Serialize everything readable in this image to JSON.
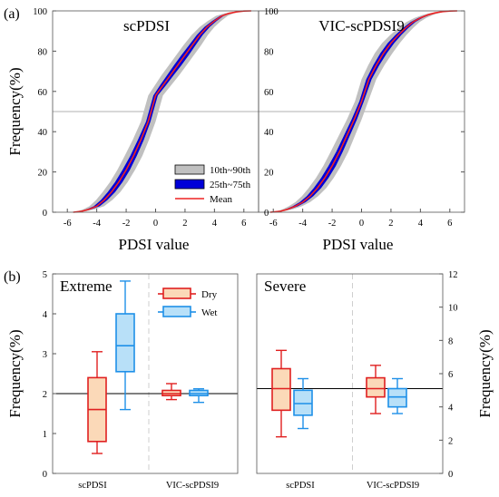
{
  "colors": {
    "band_outer": "#c0c0c0",
    "band_inner": "#0000d8",
    "mean_line": "#ee2222",
    "reference_line": "#b0b0b0",
    "dry_stroke": "#e02020",
    "dry_fill": "#fbd9b8",
    "wet_stroke": "#1e90e8",
    "wet_fill": "#b8e0f8",
    "hline": "#000000"
  },
  "chart_data": [
    {
      "panel": "(a)",
      "type": "line",
      "title": "scPDSI",
      "xlabel": "PDSI value",
      "ylabel": "Frequency(%)",
      "xlim": [
        -7,
        7
      ],
      "ylim": [
        0,
        100
      ],
      "xticks": [
        -6,
        -4,
        -2,
        0,
        2,
        4,
        6
      ],
      "yticks": [
        0,
        20,
        40,
        60,
        80,
        100
      ],
      "reference_y": 50,
      "legend": [
        "10th~90th",
        "25th~75th",
        "Mean"
      ],
      "legend_position": "lower-right",
      "series": [
        {
          "name": "Mean",
          "x": [
            -5.6,
            -5,
            -4.5,
            -4,
            -3.5,
            -3,
            -2.5,
            -2,
            -1.5,
            -1,
            -0.5,
            0,
            0.5,
            1,
            1.5,
            2,
            2.5,
            3,
            3.5,
            4,
            4.5,
            5,
            5.5,
            6,
            6.5
          ],
          "y": [
            0,
            0.5,
            1.5,
            3,
            6,
            10,
            15,
            21,
            28,
            36,
            45,
            58,
            63,
            68,
            73,
            78,
            83,
            88,
            92,
            95,
            97.5,
            98.8,
            99.5,
            99.9,
            100
          ]
        },
        {
          "name": "10th~90th",
          "band_halfwidth": [
            0,
            0.3,
            0.4,
            0.5,
            0.55,
            0.6,
            0.6,
            0.6,
            0.6,
            0.55,
            0.5,
            0.5,
            0.55,
            0.6,
            0.6,
            0.6,
            0.6,
            0.55,
            0.5,
            0.45,
            0.4,
            0.3,
            0.25,
            0.15,
            0.1
          ]
        },
        {
          "name": "25th~75th",
          "band_halfwidth": [
            0,
            0.12,
            0.16,
            0.2,
            0.22,
            0.25,
            0.25,
            0.25,
            0.22,
            0.2,
            0.15,
            0.15,
            0.2,
            0.22,
            0.25,
            0.25,
            0.22,
            0.2,
            0.18,
            0.15,
            0.12,
            0.1,
            0.08,
            0.05,
            0.03
          ]
        }
      ]
    },
    {
      "panel": "(a)",
      "type": "line",
      "title": "VIC-scPDSI9",
      "xlabel": "PDSI value",
      "ylabel": "",
      "xlim": [
        -7,
        7
      ],
      "ylim": [
        0,
        100
      ],
      "xticks": [
        -6,
        -4,
        -2,
        0,
        2,
        4,
        6
      ],
      "yticks": [
        0,
        20,
        40,
        60,
        80,
        100
      ],
      "reference_y": 50,
      "series": [
        {
          "name": "Mean",
          "x": [
            -6.2,
            -5.5,
            -5,
            -4.5,
            -4,
            -3.5,
            -3,
            -2.5,
            -2,
            -1.5,
            -1,
            -0.5,
            0,
            0.5,
            1,
            1.5,
            2,
            2.5,
            3,
            3.5,
            4,
            4.5,
            5,
            5.5,
            6,
            6.5
          ],
          "y": [
            0,
            0.5,
            1.5,
            3,
            5,
            8,
            12,
            17,
            23,
            30,
            38,
            46,
            55,
            66,
            73,
            79,
            84,
            88,
            91.5,
            94.5,
            96.5,
            98,
            99,
            99.6,
            99.9,
            100
          ]
        },
        {
          "name": "10th~90th",
          "band_halfwidth": [
            0,
            0.25,
            0.35,
            0.45,
            0.5,
            0.55,
            0.6,
            0.6,
            0.6,
            0.6,
            0.55,
            0.5,
            0.45,
            0.5,
            0.55,
            0.6,
            0.6,
            0.55,
            0.5,
            0.45,
            0.4,
            0.35,
            0.3,
            0.2,
            0.15,
            0.1
          ]
        },
        {
          "name": "25th~75th",
          "band_halfwidth": [
            0,
            0.1,
            0.14,
            0.18,
            0.2,
            0.22,
            0.25,
            0.25,
            0.25,
            0.22,
            0.2,
            0.18,
            0.15,
            0.18,
            0.2,
            0.22,
            0.22,
            0.2,
            0.18,
            0.16,
            0.14,
            0.12,
            0.1,
            0.08,
            0.05,
            0.03
          ]
        }
      ]
    },
    {
      "panel": "(b)",
      "type": "box",
      "title": "Extreme",
      "ylabel": "Frequency(%)",
      "ylim": [
        0,
        5
      ],
      "yticks": [
        0,
        1,
        2,
        3,
        4,
        5
      ],
      "categories": [
        "scPDSI",
        "VIC-scPDSI9"
      ],
      "hline_y": 2,
      "legend": [
        "Dry",
        "Wet"
      ],
      "legend_position": "top-right",
      "series": [
        {
          "name": "Dry",
          "boxes": [
            {
              "category": "scPDSI",
              "min": 0.5,
              "q1": 0.8,
              "median": 1.6,
              "q3": 2.4,
              "max": 3.05
            },
            {
              "category": "VIC-scPDSI9",
              "min": 1.85,
              "q1": 1.95,
              "median": 2.0,
              "q3": 2.08,
              "max": 2.25
            }
          ]
        },
        {
          "name": "Wet",
          "boxes": [
            {
              "category": "scPDSI",
              "min": 1.6,
              "q1": 2.55,
              "median": 3.2,
              "q3": 4.0,
              "max": 4.82
            },
            {
              "category": "VIC-scPDSI9",
              "min": 1.78,
              "q1": 1.95,
              "median": 2.0,
              "q3": 2.08,
              "max": 2.12
            }
          ]
        }
      ]
    },
    {
      "panel": "(b)",
      "type": "box",
      "title": "Severe",
      "ylabel": "Frequency(%)",
      "ylim": [
        0,
        12
      ],
      "yticks": [
        0,
        2,
        4,
        6,
        8,
        10,
        12
      ],
      "yaxis": "right",
      "categories": [
        "scPDSI",
        "VIC-scPDSI9"
      ],
      "hline_y": 5.1,
      "series": [
        {
          "name": "Dry",
          "boxes": [
            {
              "category": "scPDSI",
              "min": 2.2,
              "q1": 3.8,
              "median": 5.1,
              "q3": 6.3,
              "max": 7.4
            },
            {
              "category": "VIC-scPDSI9",
              "min": 3.6,
              "q1": 4.6,
              "median": 5.1,
              "q3": 5.75,
              "max": 6.5
            }
          ]
        },
        {
          "name": "Wet",
          "boxes": [
            {
              "category": "scPDSI",
              "min": 2.7,
              "q1": 3.5,
              "median": 4.2,
              "q3": 5.0,
              "max": 5.7
            },
            {
              "category": "VIC-scPDSI9",
              "min": 3.6,
              "q1": 4.0,
              "median": 4.6,
              "q3": 5.1,
              "max": 5.7
            }
          ]
        }
      ]
    }
  ],
  "labels": {
    "panel_a": "(a)",
    "panel_b": "(b)"
  }
}
